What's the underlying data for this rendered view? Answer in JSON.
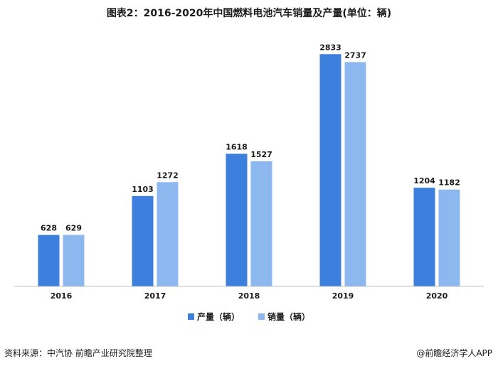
{
  "title": "图表2：2016-2020年中国燃料电池汽车销量及产量(单位：辆)",
  "chart_data": {
    "type": "bar",
    "categories": [
      "2016",
      "2017",
      "2018",
      "2019",
      "2020"
    ],
    "series": [
      {
        "name": "产量（辆）",
        "values": [
          628,
          1103,
          1618,
          2833,
          1204
        ],
        "color": "#3d7fdc"
      },
      {
        "name": "销量（辆）",
        "values": [
          629,
          1272,
          1527,
          2737,
          1182
        ],
        "color": "#8cb8ef"
      }
    ],
    "ylim": [
      0,
      3000
    ],
    "grid": false,
    "legend_position": "bottom"
  },
  "footer": {
    "source": "资料来源：中汽协 前瞻产业研究院整理",
    "brand": "@前瞻经济学人APP"
  }
}
